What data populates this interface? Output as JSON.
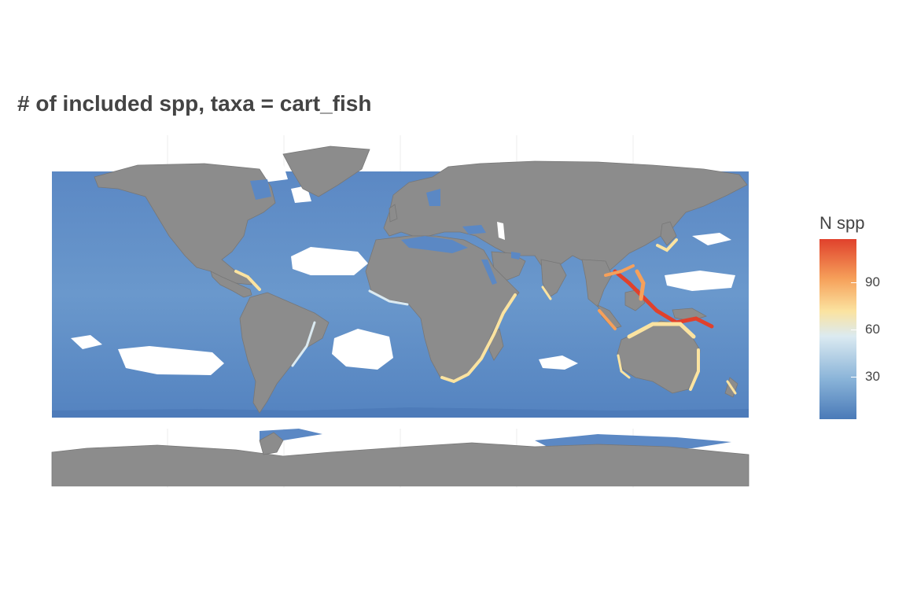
{
  "title": "# of included spp, taxa = cart_fish",
  "legend": {
    "title": "N spp",
    "ticks": [
      {
        "value": 30,
        "label": "30"
      },
      {
        "value": 60,
        "label": "60"
      },
      {
        "value": 90,
        "label": "90"
      }
    ],
    "min_value": 0,
    "max_value": 115,
    "colors": [
      "#4a7ab8",
      "#89b3d8",
      "#dbeaf1",
      "#fbe3a0",
      "#f6a05a",
      "#e0412c"
    ]
  },
  "map": {
    "ocean_color": "#5b88c4",
    "land_color": "#8c8c8c",
    "projection": "equirectangular",
    "hotspot_regions": [
      "Coral Triangle",
      "Northern Australia",
      "South-east Asia",
      "Southern Africa",
      "Caribbean",
      "Japan",
      "New Zealand"
    ]
  }
}
